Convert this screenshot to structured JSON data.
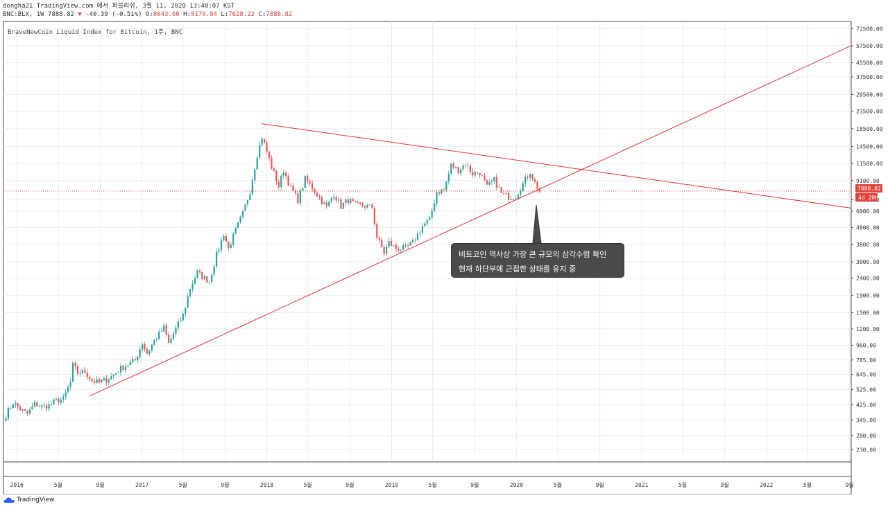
{
  "header": {
    "line1": "dongha21 TradingView.com 에서 퍼블리쉬, 3월 11, 2020 13:40:07 KST",
    "symbol": "BNC:BLX, 1W 7888.82",
    "change_arrow": "▼",
    "change": "-40.39 (-0.51%)",
    "o_label": "O:",
    "o_value": "8043.60",
    "h_label": "H:",
    "h_value": "8170.84",
    "l_label": "L:",
    "l_value": "7628.22",
    "c_label": "C:",
    "c_value": "7888.82"
  },
  "legend": "BraveNewCoin Liquid Index for Bitcoin, 1주, BNC",
  "price_label": "7888.82",
  "countdown_label": "4d 20h",
  "annotation": {
    "line1": "비트코인 역사상 가장 큰 규모의 삼각수렴 확인",
    "line2": "현재 하단부에 근접한 상태를 유지 중"
  },
  "footer": {
    "brand": "TradingView"
  },
  "colors": {
    "up": "#26a69a",
    "down": "#ef5350",
    "trendline": "#e8302c",
    "price_line": "#e0433e",
    "grid": "#e8eef4"
  },
  "chart_data": {
    "type": "candlestick",
    "y_scale": "log",
    "y_range": [
      195,
      80000
    ],
    "x_range": [
      "2015-11-23",
      "2022-09-06"
    ],
    "y_ticks": [
      230,
      280,
      345,
      425,
      525,
      645,
      785,
      960,
      1200,
      1500,
      1900,
      2400,
      3000,
      3800,
      4800,
      6000,
      7000,
      9100,
      11500,
      14500,
      18500,
      23500,
      29500,
      37500,
      45500,
      57500,
      72500
    ],
    "y_tick_labels": [
      "230.00",
      "280.00",
      "345.00",
      "425.00",
      "525.00",
      "645.00",
      "785.00",
      "960.00",
      "1200.00",
      "1500.00",
      "1900.00",
      "2400.00",
      "3000.00",
      "3800.00",
      "4800.00",
      "6000.00",
      "7000.00",
      "9100.00",
      "11500.00",
      "14500.00",
      "18500.00",
      "23500.00",
      "29500.00",
      "37500.00",
      "45500.00",
      "57500.00",
      "72500.00"
    ],
    "x_ticks": [
      {
        "date": "2016-01-01",
        "label": "2016"
      },
      {
        "date": "2016-05-01",
        "label": "5월"
      },
      {
        "date": "2016-09-01",
        "label": "9월"
      },
      {
        "date": "2017-01-01",
        "label": "2017"
      },
      {
        "date": "2017-05-01",
        "label": "5월"
      },
      {
        "date": "2017-09-01",
        "label": "9월"
      },
      {
        "date": "2018-01-01",
        "label": "2018"
      },
      {
        "date": "2018-05-01",
        "label": "5월"
      },
      {
        "date": "2018-09-01",
        "label": "9월"
      },
      {
        "date": "2019-01-01",
        "label": "2019"
      },
      {
        "date": "2019-05-01",
        "label": "5월"
      },
      {
        "date": "2019-09-01",
        "label": "9월"
      },
      {
        "date": "2020-01-01",
        "label": "2020"
      },
      {
        "date": "2020-05-01",
        "label": "5월"
      },
      {
        "date": "2020-09-01",
        "label": "9월"
      },
      {
        "date": "2021-01-01",
        "label": "2021"
      },
      {
        "date": "2021-05-01",
        "label": "5월"
      },
      {
        "date": "2021-09-01",
        "label": "9월"
      },
      {
        "date": "2022-01-01",
        "label": "2022"
      },
      {
        "date": "2022-05-01",
        "label": "5월"
      },
      {
        "date": "2022-09-01",
        "label": "9월"
      }
    ],
    "last_close": 7888.82,
    "series_close": [
      [
        "2015-11-30",
        370
      ],
      [
        "2015-12-21",
        440
      ],
      [
        "2016-01-11",
        400
      ],
      [
        "2016-02-01",
        375
      ],
      [
        "2016-02-22",
        430
      ],
      [
        "2016-03-14",
        415
      ],
      [
        "2016-04-04",
        422
      ],
      [
        "2016-04-25",
        450
      ],
      [
        "2016-05-16",
        460
      ],
      [
        "2016-06-06",
        580
      ],
      [
        "2016-06-13",
        730
      ],
      [
        "2016-06-27",
        660
      ],
      [
        "2016-07-18",
        670
      ],
      [
        "2016-08-08",
        590
      ],
      [
        "2016-08-29",
        575
      ],
      [
        "2016-09-19",
        600
      ],
      [
        "2016-10-10",
        640
      ],
      [
        "2016-10-31",
        700
      ],
      [
        "2016-11-21",
        740
      ],
      [
        "2016-12-12",
        780
      ],
      [
        "2017-01-02",
        990
      ],
      [
        "2017-01-16",
        860
      ],
      [
        "2017-02-06",
        1020
      ],
      [
        "2017-03-06",
        1220
      ],
      [
        "2017-03-20",
        980
      ],
      [
        "2017-04-10",
        1200
      ],
      [
        "2017-05-01",
        1450
      ],
      [
        "2017-05-22",
        2100
      ],
      [
        "2017-06-12",
        2600
      ],
      [
        "2017-06-26",
        2450
      ],
      [
        "2017-07-17",
        2300
      ],
      [
        "2017-08-07",
        3300
      ],
      [
        "2017-08-28",
        4400
      ],
      [
        "2017-09-11",
        3600
      ],
      [
        "2017-10-02",
        4600
      ],
      [
        "2017-10-23",
        5800
      ],
      [
        "2017-11-13",
        7900
      ],
      [
        "2017-12-04",
        13000
      ],
      [
        "2017-12-18",
        16500
      ],
      [
        "2018-01-01",
        13500
      ],
      [
        "2018-01-15",
        11000
      ],
      [
        "2018-02-05",
        8400
      ],
      [
        "2018-02-19",
        10500
      ],
      [
        "2018-03-12",
        8200
      ],
      [
        "2018-04-02",
        7000
      ],
      [
        "2018-04-23",
        9300
      ],
      [
        "2018-05-14",
        8300
      ],
      [
        "2018-06-04",
        7200
      ],
      [
        "2018-06-25",
        6300
      ],
      [
        "2018-07-16",
        7600
      ],
      [
        "2018-08-06",
        6400
      ],
      [
        "2018-08-27",
        7000
      ],
      [
        "2018-09-17",
        6500
      ],
      [
        "2018-10-08",
        6500
      ],
      [
        "2018-11-05",
        6300
      ],
      [
        "2018-11-19",
        4200
      ],
      [
        "2018-12-10",
        3400
      ],
      [
        "2018-12-24",
        3900
      ],
      [
        "2019-01-14",
        3600
      ],
      [
        "2019-02-11",
        3600
      ],
      [
        "2019-03-04",
        3900
      ],
      [
        "2019-04-01",
        4900
      ],
      [
        "2019-04-22",
        5300
      ],
      [
        "2019-05-13",
        7800
      ],
      [
        "2019-06-03",
        8000
      ],
      [
        "2019-06-24",
        11200
      ],
      [
        "2019-07-15",
        10500
      ],
      [
        "2019-08-05",
        11500
      ],
      [
        "2019-08-26",
        10000
      ],
      [
        "2019-09-16",
        10200
      ],
      [
        "2019-10-07",
        8300
      ],
      [
        "2019-10-28",
        9200
      ],
      [
        "2019-11-18",
        7600
      ],
      [
        "2019-12-09",
        7300
      ],
      [
        "2019-12-30",
        7400
      ],
      [
        "2020-01-20",
        8700
      ],
      [
        "2020-02-10",
        10300
      ],
      [
        "2020-02-24",
        8800
      ],
      [
        "2020-03-09",
        7888.82
      ]
    ],
    "trendlines": [
      {
        "name": "upper",
        "from": [
          "2017-12-18",
          19800
        ],
        "to": [
          "2022-09-06",
          6250
        ]
      },
      {
        "name": "lower",
        "from": [
          "2016-08-01",
          480
        ],
        "to": [
          "2022-09-06",
          57500
        ]
      }
    ]
  }
}
